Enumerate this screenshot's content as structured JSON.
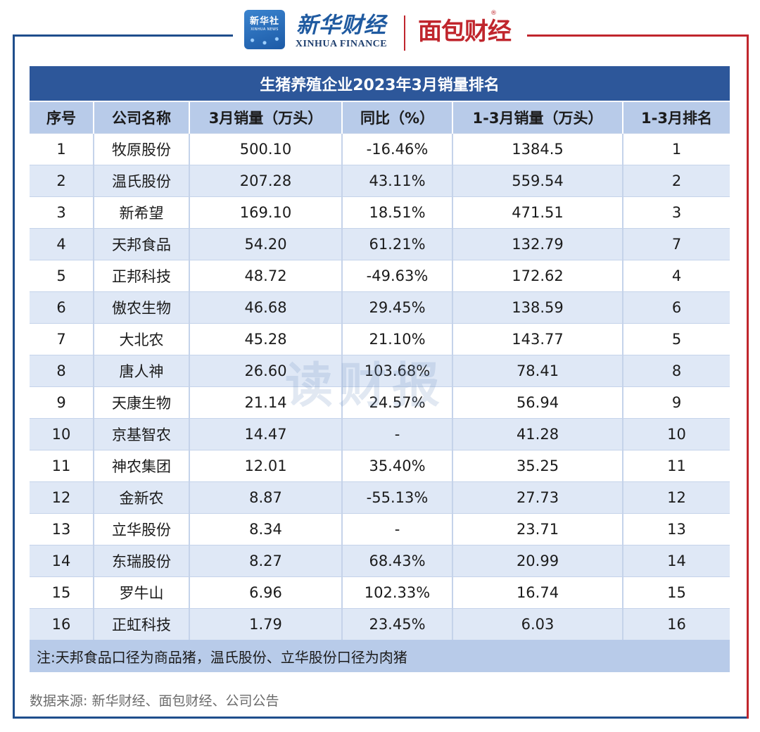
{
  "header": {
    "xinhua_badge": "新华社",
    "xinhua_badge_sub": "XINHUA NEWS",
    "xinhua_finance_cn": "新华财经",
    "xinhua_finance_en": "XINHUA FINANCE",
    "mianbao_logo": "面包财经",
    "registered_mark": "®"
  },
  "colors": {
    "frame_blue": "#1f4e8c",
    "frame_red": "#c0262d",
    "title_bar": "#2d579a",
    "header_bar": "#b8cbe9",
    "stripe": "#dfe8f6"
  },
  "table": {
    "title": "生猪养殖企业2023年3月销量排名",
    "columns": [
      "序号",
      "公司名称",
      "3月销量（万头）",
      "同比（%）",
      "1-3月销量（万头）",
      "1-3月排名"
    ],
    "rows": [
      [
        "1",
        "牧原股份",
        "500.10",
        "-16.46%",
        "1384.5",
        "1"
      ],
      [
        "2",
        "温氏股份",
        "207.28",
        "43.11%",
        "559.54",
        "2"
      ],
      [
        "3",
        "新希望",
        "169.10",
        "18.51%",
        "471.51",
        "3"
      ],
      [
        "4",
        "天邦食品",
        "54.20",
        "61.21%",
        "132.79",
        "7"
      ],
      [
        "5",
        "正邦科技",
        "48.72",
        "-49.63%",
        "172.62",
        "4"
      ],
      [
        "6",
        "傲农生物",
        "46.68",
        "29.45%",
        "138.59",
        "6"
      ],
      [
        "7",
        "大北农",
        "45.28",
        "21.10%",
        "143.77",
        "5"
      ],
      [
        "8",
        "唐人神",
        "26.60",
        "103.68%",
        "78.41",
        "8"
      ],
      [
        "9",
        "天康生物",
        "21.14",
        "24.57%",
        "56.94",
        "9"
      ],
      [
        "10",
        "京基智农",
        "14.47",
        "-",
        "41.28",
        "10"
      ],
      [
        "11",
        "神农集团",
        "12.01",
        "35.40%",
        "35.25",
        "11"
      ],
      [
        "12",
        "金新农",
        "8.87",
        "-55.13%",
        "27.73",
        "12"
      ],
      [
        "13",
        "立华股份",
        "8.34",
        "-",
        "23.71",
        "13"
      ],
      [
        "14",
        "东瑞股份",
        "8.27",
        "68.43%",
        "20.99",
        "14"
      ],
      [
        "15",
        "罗牛山",
        "6.96",
        "102.33%",
        "16.74",
        "15"
      ],
      [
        "16",
        "正虹科技",
        "1.79",
        "23.45%",
        "6.03",
        "16"
      ]
    ],
    "note": "注:天邦食品口径为商品猪，温氏股份、立华股份口径为肉猪"
  },
  "watermark": "读财报",
  "source": "数据来源: 新华财经、面包财经、公司公告"
}
